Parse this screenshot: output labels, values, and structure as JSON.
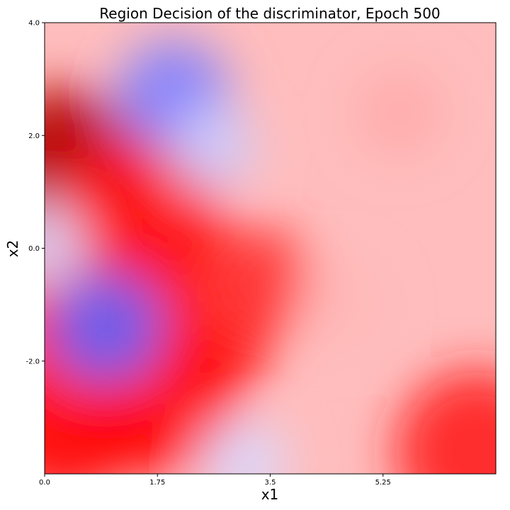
{
  "chart_data": {
    "type": "heatmap",
    "title": "Region Decision of the discriminator, Epoch 500",
    "xlabel": "x1",
    "ylabel": "x2",
    "xlim": [
      0.0,
      7.0
    ],
    "ylim": [
      -4.0,
      4.0
    ],
    "x_ticks": [
      0.0,
      1.75,
      3.5,
      5.25
    ],
    "x_tick_labels": [
      "0.0",
      "1.75",
      "3.5",
      "5.25"
    ],
    "y_ticks": [
      4.0,
      2.0,
      0.0,
      -2.0
    ],
    "y_tick_labels": [
      "4.0",
      "2.0",
      "0.0",
      "-2.0"
    ],
    "colormap": "bwr",
    "color_low": "#0000ff",
    "color_mid": "#ffffff",
    "color_high": "#ff0000",
    "color_max": "#8b0000",
    "grid": false,
    "regions": [
      {
        "x": 0.25,
        "y": 1.4,
        "value": 1.0
      },
      {
        "x": 0.45,
        "y": -0.5,
        "value": 0.9
      },
      {
        "x": 1.5,
        "y": 0.6,
        "value": 0.85
      },
      {
        "x": 0.3,
        "y": -3.0,
        "value": 0.9
      },
      {
        "x": 1.8,
        "y": -2.6,
        "value": 0.9
      },
      {
        "x": 2.4,
        "y": -1.2,
        "value": 0.85
      },
      {
        "x": 3.3,
        "y": -0.6,
        "value": 0.7
      },
      {
        "x": 2.0,
        "y": 2.7,
        "value": -0.5
      },
      {
        "x": 2.6,
        "y": 1.8,
        "value": -0.2
      },
      {
        "x": 0.95,
        "y": -1.4,
        "value": -0.6
      },
      {
        "x": 0.0,
        "y": 0.05,
        "value": -0.15
      },
      {
        "x": 3.1,
        "y": -3.8,
        "value": -0.15
      },
      {
        "x": 4.6,
        "y": -1.0,
        "value": 0.25
      },
      {
        "x": 6.7,
        "y": -3.6,
        "value": 0.8
      },
      {
        "x": 5.5,
        "y": 2.4,
        "value": 0.3
      }
    ]
  }
}
